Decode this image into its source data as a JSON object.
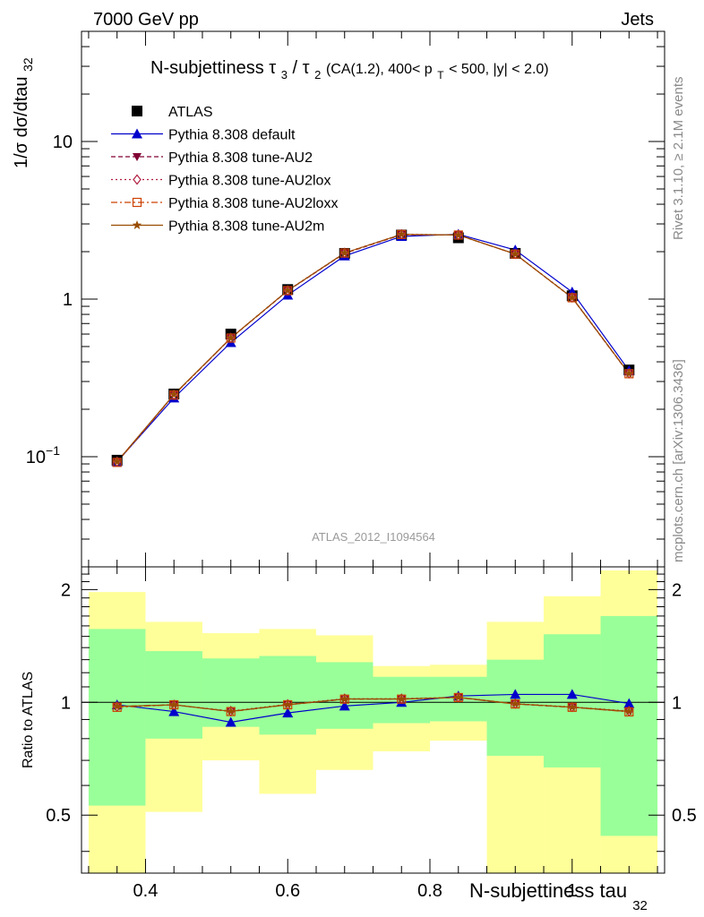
{
  "header": {
    "left": "7000 GeV pp",
    "right": "Jets"
  },
  "title": {
    "prefix": "N-subjettiness",
    "ratio_num": "τ",
    "ratio_num_sub": "3",
    "slash": "/",
    "ratio_den": "τ",
    "ratio_den_sub": "2",
    "cuts_a": " (CA(1.2), 400< p",
    "cuts_sub": "T",
    "cuts_b": " < 500, |y| < 2.0)"
  },
  "side_labels": {
    "rivet": "Rivet 3.1.10, ≥ 2.1M events",
    "mcplots": "mcplots.cern.ch [arXiv:1306.3436]"
  },
  "watermark": "ATLAS_2012_I1094564",
  "axes": {
    "ylabel_main": "1/σ dσ/dtau",
    "ylabel_main_sub": "32",
    "ylabel_ratio": "Ratio to ATLAS",
    "xlabel": "N-subjettiness tau",
    "xlabel_sub": "32",
    "y_ticks_main": [
      {
        "value": 10,
        "label": "10"
      },
      {
        "value": 1,
        "label": "1"
      },
      {
        "value": 0.1,
        "label": "10",
        "exp": "−1"
      }
    ],
    "y_ticks_ratio": [
      {
        "value": 2,
        "label": "2"
      },
      {
        "value": 1,
        "label": "1"
      },
      {
        "value": 0.5,
        "label": "0.5"
      }
    ],
    "x_ticks": [
      {
        "value": 0.4,
        "label": "0.4"
      },
      {
        "value": 0.6,
        "label": "0.6"
      },
      {
        "value": 0.8,
        "label": "0.8"
      },
      {
        "value": 1.0,
        "label": "1"
      }
    ]
  },
  "legend": [
    {
      "name": "ATLAS",
      "color": "#000000",
      "marker": "square-filled",
      "line": "none"
    },
    {
      "name": "Pythia 8.308 default",
      "color": "#0000cc",
      "marker": "triangle-up",
      "line": "solid"
    },
    {
      "name": "Pythia 8.308 tune-AU2",
      "color": "#800033",
      "marker": "triangle-down",
      "line": "dashed"
    },
    {
      "name": "Pythia 8.308 tune-AU2lox",
      "color": "#b02040",
      "marker": "diamond-open",
      "line": "dotted"
    },
    {
      "name": "Pythia 8.308 tune-AU2loxx",
      "color": "#cc4000",
      "marker": "square-open",
      "line": "dashdot"
    },
    {
      "name": "Pythia 8.308 tune-AU2m",
      "color": "#994d00",
      "marker": "star",
      "line": "solid"
    }
  ],
  "chart_data": {
    "type": "line",
    "x_range": [
      0.31,
      1.13
    ],
    "y_range_main": [
      0.02,
      50
    ],
    "y_scale_main": "log",
    "y_range_ratio": [
      0.35,
      2.3
    ],
    "y_scale_ratio": "log",
    "bins": [
      0.32,
      0.4,
      0.48,
      0.56,
      0.64,
      0.72,
      0.8,
      0.88,
      0.96,
      1.04,
      1.12
    ],
    "x": [
      0.36,
      0.44,
      0.52,
      0.6,
      0.68,
      0.76,
      0.84,
      0.92,
      1.0,
      1.08
    ],
    "data": {
      "name": "ATLAS",
      "values": [
        0.095,
        0.25,
        0.6,
        1.15,
        1.95,
        2.55,
        2.45,
        1.95,
        1.05,
        0.355
      ]
    },
    "series": [
      {
        "name": "Pythia 8.308 default",
        "values": [
          0.093,
          0.236,
          0.53,
          1.06,
          1.88,
          2.5,
          2.58,
          2.05,
          1.11,
          0.352
        ]
      },
      {
        "name": "Pythia 8.308 tune-AU2",
        "values": [
          0.093,
          0.247,
          0.565,
          1.13,
          1.95,
          2.56,
          2.55,
          1.93,
          1.02,
          0.335
        ]
      },
      {
        "name": "Pythia 8.308 tune-AU2lox",
        "values": [
          0.093,
          0.247,
          0.568,
          1.135,
          1.965,
          2.58,
          2.555,
          1.935,
          1.025,
          0.338
        ]
      },
      {
        "name": "Pythia 8.308 tune-AU2loxx",
        "values": [
          0.092,
          0.246,
          0.566,
          1.132,
          1.96,
          2.57,
          2.55,
          1.93,
          1.02,
          0.336
        ]
      },
      {
        "name": "Pythia 8.308 tune-AU2m",
        "values": [
          0.093,
          0.248,
          0.567,
          1.133,
          1.962,
          2.575,
          2.552,
          1.932,
          1.022,
          0.337
        ]
      }
    ],
    "ratio_bands": {
      "inner": [
        [
          0.53,
          1.57
        ],
        [
          0.8,
          1.37
        ],
        [
          0.86,
          1.31
        ],
        [
          0.82,
          1.33
        ],
        [
          0.85,
          1.28
        ],
        [
          0.88,
          1.17
        ],
        [
          0.89,
          1.17
        ],
        [
          0.72,
          1.3
        ],
        [
          0.67,
          1.52
        ],
        [
          0.44,
          1.7
        ]
      ],
      "outer": [
        [
          0.3,
          1.97
        ],
        [
          0.51,
          1.64
        ],
        [
          0.7,
          1.53
        ],
        [
          0.57,
          1.57
        ],
        [
          0.66,
          1.51
        ],
        [
          0.74,
          1.25
        ],
        [
          0.79,
          1.26
        ],
        [
          0.3,
          1.64
        ],
        [
          0.3,
          1.92
        ],
        [
          0.3,
          2.25
        ]
      ]
    },
    "ratios": [
      {
        "name": "Pythia 8.308 default",
        "values": [
          0.985,
          0.945,
          0.885,
          0.937,
          0.978,
          1.0,
          1.04,
          1.05,
          1.05,
          0.993
        ]
      },
      {
        "name": "Pythia 8.308 tune-AU2",
        "values": [
          0.975,
          0.985,
          0.945,
          0.985,
          1.02,
          1.02,
          1.03,
          0.99,
          0.97,
          0.945
        ]
      },
      {
        "name": "Pythia 8.308 tune-AU2lox",
        "values": [
          0.975,
          0.985,
          0.948,
          0.988,
          1.023,
          1.023,
          1.032,
          0.992,
          0.972,
          0.948
        ]
      },
      {
        "name": "Pythia 8.308 tune-AU2loxx",
        "values": [
          0.97,
          0.985,
          0.945,
          0.985,
          1.02,
          1.02,
          1.03,
          0.99,
          0.97,
          0.943
        ]
      },
      {
        "name": "Pythia 8.308 tune-AU2m",
        "values": [
          0.975,
          0.985,
          0.946,
          0.986,
          1.021,
          1.021,
          1.031,
          0.991,
          0.971,
          0.946
        ]
      }
    ],
    "colors": {
      "band_inner": "#99ff99",
      "band_outer": "#ffff99"
    }
  }
}
